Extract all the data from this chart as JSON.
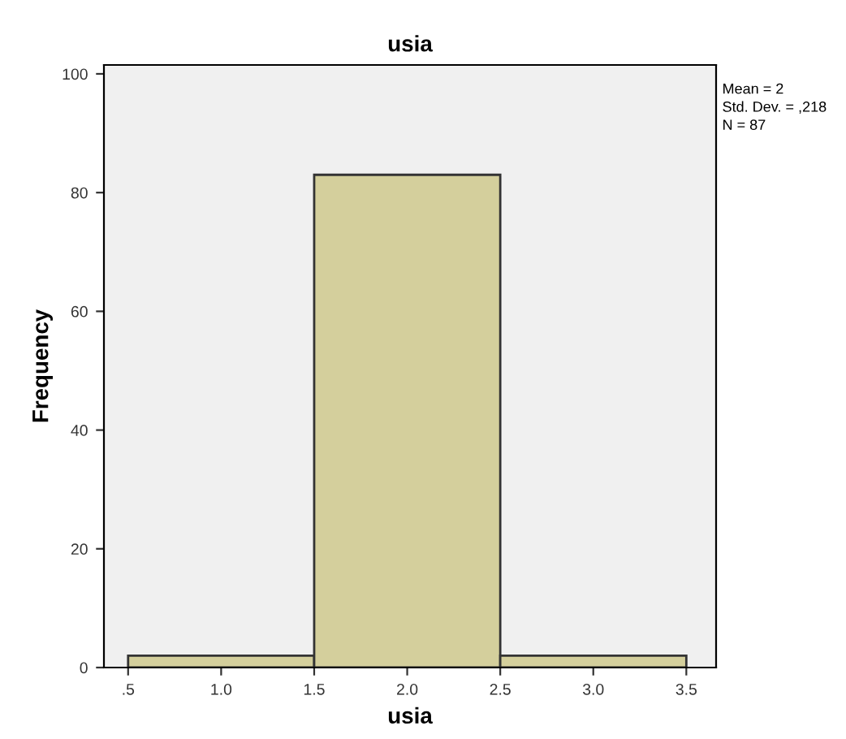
{
  "chart_data": {
    "type": "histogram",
    "title": "usia",
    "xlabel": "usia",
    "ylabel": "Frequency",
    "bins": [
      0.5,
      1.5,
      2.5,
      3.5
    ],
    "values": [
      2,
      83,
      2
    ],
    "color": "#d4cf9c",
    "xlim": [
      0.37,
      3.66
    ],
    "xticks": [
      {
        "value": 0.5,
        "label": ".5"
      },
      {
        "value": 1.0,
        "label": "1.0"
      },
      {
        "value": 1.5,
        "label": "1.5"
      },
      {
        "value": 2.0,
        "label": "2.0"
      },
      {
        "value": 2.5,
        "label": "2.5"
      },
      {
        "value": 3.0,
        "label": "3.0"
      },
      {
        "value": 3.5,
        "label": "3.5"
      }
    ],
    "ylim": [
      0,
      101.5
    ],
    "yticks": [
      0,
      20,
      40,
      60,
      80,
      100
    ],
    "grid": false,
    "legend": false,
    "annotations": [
      "Mean = 2",
      "Std. Dev. = ,218",
      "N = 87"
    ]
  }
}
